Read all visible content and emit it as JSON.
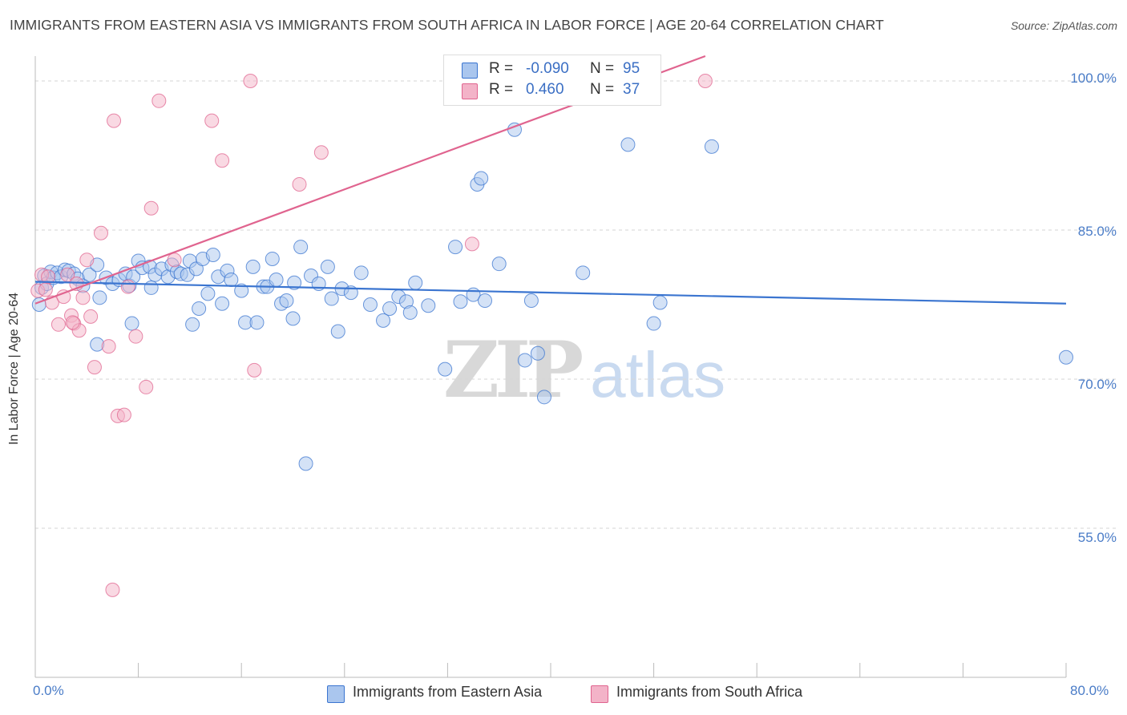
{
  "title": "IMMIGRANTS FROM EASTERN ASIA VS IMMIGRANTS FROM SOUTH AFRICA IN LABOR FORCE | AGE 20-64 CORRELATION CHART",
  "source": "Source: ZipAtlas.com",
  "watermark": {
    "zip": "ZIP",
    "atlas": "atlas"
  },
  "colors": {
    "blue": "#3b75d0",
    "blue_fill": "#aac6ee",
    "pink": "#e0648f",
    "pink_fill": "#f3b3c8",
    "tick_text": "#4a7cc7",
    "grid": "#d6d6d6"
  },
  "legend": {
    "series": [
      {
        "r_label": "R =",
        "r_value": "-0.090",
        "n_label": "N =",
        "n_value": "95"
      },
      {
        "r_label": "R =",
        "r_value": "0.460",
        "n_label": "N =",
        "n_value": "37"
      }
    ]
  },
  "chart_data": {
    "type": "scatter",
    "title": "IMMIGRANTS FROM EASTERN ASIA VS IMMIGRANTS FROM SOUTH AFRICA IN LABOR FORCE | AGE 20-64 CORRELATION CHART",
    "xlabel": "",
    "ylabel": "In Labor Force | Age 20-64",
    "xlim": [
      0,
      80
    ],
    "ylim": [
      40,
      102.5
    ],
    "x_tick_labels": [
      "0.0%",
      "80.0%"
    ],
    "y_ticks": [
      55,
      70,
      85,
      100
    ],
    "y_tick_labels": [
      "55.0%",
      "70.0%",
      "85.0%",
      "100.0%"
    ],
    "grid": "horizontal dashed",
    "legend_position": "bottom-center",
    "series": [
      {
        "name": "Immigrants from Eastern Asia",
        "color": "#3b75d0",
        "r": -0.09,
        "n": 95,
        "trend": {
          "x": [
            0,
            80
          ],
          "y": [
            79.8,
            77.6
          ]
        },
        "points": [
          [
            0.3,
            77.5
          ],
          [
            0.5,
            79.2
          ],
          [
            0.7,
            80.4
          ],
          [
            0.9,
            79.6
          ],
          [
            1.2,
            80.8
          ],
          [
            1.4,
            80.2
          ],
          [
            1.7,
            80.7
          ],
          [
            2.0,
            80.3
          ],
          [
            2.3,
            81.0
          ],
          [
            2.6,
            80.9
          ],
          [
            3.0,
            80.6
          ],
          [
            3.3,
            80.1
          ],
          [
            3.7,
            79.4
          ],
          [
            4.2,
            80.5
          ],
          [
            4.8,
            81.5
          ],
          [
            5.0,
            78.2
          ],
          [
            5.5,
            80.2
          ],
          [
            6.0,
            79.6
          ],
          [
            6.5,
            80.0
          ],
          [
            7.0,
            80.6
          ],
          [
            7.3,
            79.4
          ],
          [
            7.6,
            80.3
          ],
          [
            8.0,
            81.9
          ],
          [
            8.3,
            81.2
          ],
          [
            8.9,
            81.3
          ],
          [
            9.0,
            79.2
          ],
          [
            9.3,
            80.5
          ],
          [
            9.8,
            81.1
          ],
          [
            10.3,
            80.3
          ],
          [
            10.6,
            81.5
          ],
          [
            11.0,
            80.8
          ],
          [
            11.3,
            80.6
          ],
          [
            11.8,
            80.5
          ],
          [
            12.0,
            81.9
          ],
          [
            12.5,
            81.1
          ],
          [
            12.7,
            77.1
          ],
          [
            13.0,
            82.1
          ],
          [
            13.4,
            78.6
          ],
          [
            13.8,
            82.5
          ],
          [
            14.2,
            80.3
          ],
          [
            14.5,
            77.6
          ],
          [
            14.9,
            80.9
          ],
          [
            15.2,
            80.0
          ],
          [
            16.0,
            78.9
          ],
          [
            16.3,
            75.7
          ],
          [
            16.9,
            81.3
          ],
          [
            17.2,
            75.7
          ],
          [
            17.7,
            79.3
          ],
          [
            18.0,
            79.3
          ],
          [
            18.4,
            82.1
          ],
          [
            18.7,
            80.0
          ],
          [
            19.1,
            77.6
          ],
          [
            19.5,
            77.9
          ],
          [
            20.1,
            79.7
          ],
          [
            20.6,
            83.3
          ],
          [
            21.4,
            80.4
          ],
          [
            22.0,
            79.6
          ],
          [
            22.7,
            81.3
          ],
          [
            23.0,
            78.1
          ],
          [
            23.5,
            74.8
          ],
          [
            23.8,
            79.1
          ],
          [
            24.5,
            78.7
          ],
          [
            25.3,
            80.7
          ],
          [
            26.0,
            77.5
          ],
          [
            27.0,
            75.9
          ],
          [
            27.5,
            77.1
          ],
          [
            28.2,
            78.3
          ],
          [
            28.8,
            77.8
          ],
          [
            29.1,
            76.7
          ],
          [
            29.5,
            79.7
          ],
          [
            30.5,
            77.4
          ],
          [
            31.8,
            71.0
          ],
          [
            32.6,
            83.3
          ],
          [
            33.0,
            77.8
          ],
          [
            34.0,
            78.5
          ],
          [
            34.3,
            89.6
          ],
          [
            34.6,
            90.2
          ],
          [
            34.9,
            77.9
          ],
          [
            36.0,
            81.6
          ],
          [
            37.2,
            95.1
          ],
          [
            38.0,
            71.9
          ],
          [
            38.5,
            77.9
          ],
          [
            39.0,
            72.6
          ],
          [
            39.5,
            68.2
          ],
          [
            42.5,
            80.7
          ],
          [
            46.0,
            93.6
          ],
          [
            48.0,
            75.6
          ],
          [
            48.5,
            77.7
          ],
          [
            52.5,
            93.4
          ],
          [
            80.0,
            72.2
          ],
          [
            4.8,
            73.5
          ],
          [
            7.5,
            75.6
          ],
          [
            21.0,
            61.5
          ],
          [
            12.2,
            75.5
          ],
          [
            20.0,
            76.1
          ]
        ]
      },
      {
        "name": "Immigrants from South Africa",
        "color": "#e0648f",
        "r": 0.46,
        "n": 37,
        "trend": {
          "x": [
            0,
            52
          ],
          "y": [
            77.6,
            102.5
          ]
        },
        "points": [
          [
            0.2,
            78.9
          ],
          [
            0.5,
            80.5
          ],
          [
            0.8,
            79.0
          ],
          [
            1.0,
            80.3
          ],
          [
            1.3,
            77.7
          ],
          [
            1.8,
            75.5
          ],
          [
            2.2,
            78.3
          ],
          [
            2.5,
            80.5
          ],
          [
            2.8,
            76.4
          ],
          [
            3.0,
            75.6
          ],
          [
            3.2,
            79.6
          ],
          [
            3.4,
            74.9
          ],
          [
            3.7,
            78.2
          ],
          [
            4.0,
            82.0
          ],
          [
            4.3,
            76.3
          ],
          [
            4.6,
            71.2
          ],
          [
            5.1,
            84.7
          ],
          [
            5.7,
            73.3
          ],
          [
            6.1,
            96.0
          ],
          [
            6.4,
            66.3
          ],
          [
            6.9,
            66.4
          ],
          [
            7.2,
            79.3
          ],
          [
            7.8,
            74.3
          ],
          [
            8.6,
            69.2
          ],
          [
            9.0,
            87.2
          ],
          [
            9.6,
            98.0
          ],
          [
            10.8,
            82.0
          ],
          [
            13.7,
            96.0
          ],
          [
            14.5,
            92.0
          ],
          [
            16.7,
            100.0
          ],
          [
            17.0,
            70.9
          ],
          [
            20.5,
            89.6
          ],
          [
            22.2,
            92.8
          ],
          [
            33.9,
            83.6
          ],
          [
            52.0,
            100.0
          ],
          [
            6.0,
            48.8
          ],
          [
            2.9,
            75.7
          ]
        ]
      }
    ]
  },
  "axis": {
    "ylabel": "In Labor Force | Age 20-64",
    "x_left": "0.0%",
    "x_right": "80.0%",
    "y_ticks": [
      {
        "label": "100.0%",
        "value": 100
      },
      {
        "label": "85.0%",
        "value": 85
      },
      {
        "label": "70.0%",
        "value": 70
      },
      {
        "label": "55.0%",
        "value": 55
      }
    ]
  },
  "bottom_legend": [
    {
      "label": "Immigrants from Eastern Asia"
    },
    {
      "label": "Immigrants from South Africa"
    }
  ]
}
